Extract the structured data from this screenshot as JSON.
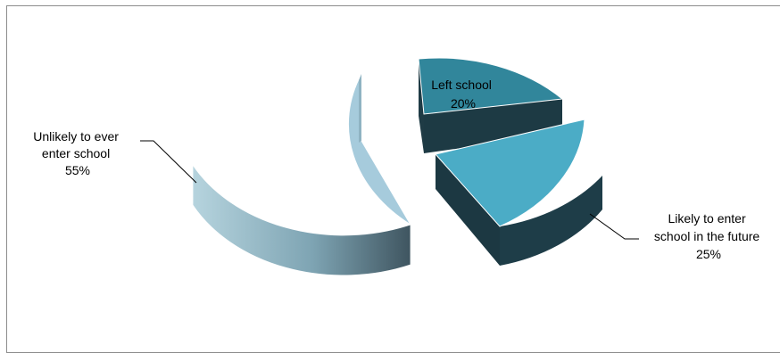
{
  "chart_data": {
    "type": "pie",
    "variant": "3d-exploded",
    "title": "",
    "slices": [
      {
        "label_lines": [
          "Left school"
        ],
        "value_label": "20%",
        "value": 20,
        "color": "#31869b",
        "side_color": "#1f3b45"
      },
      {
        "label_lines": [
          "Likely to enter",
          "school in the future"
        ],
        "value_label": "25%",
        "value": 25,
        "color": "#4bacc6",
        "side_color": "#1f3b45"
      },
      {
        "label_lines": [
          "Unlikely to ever",
          "enter school"
        ],
        "value_label": "55%",
        "value": 55,
        "color": "#a5cddb",
        "side_color": "#6f94a4"
      }
    ],
    "legend": "none",
    "label_position": "outside-with-leader-lines"
  }
}
